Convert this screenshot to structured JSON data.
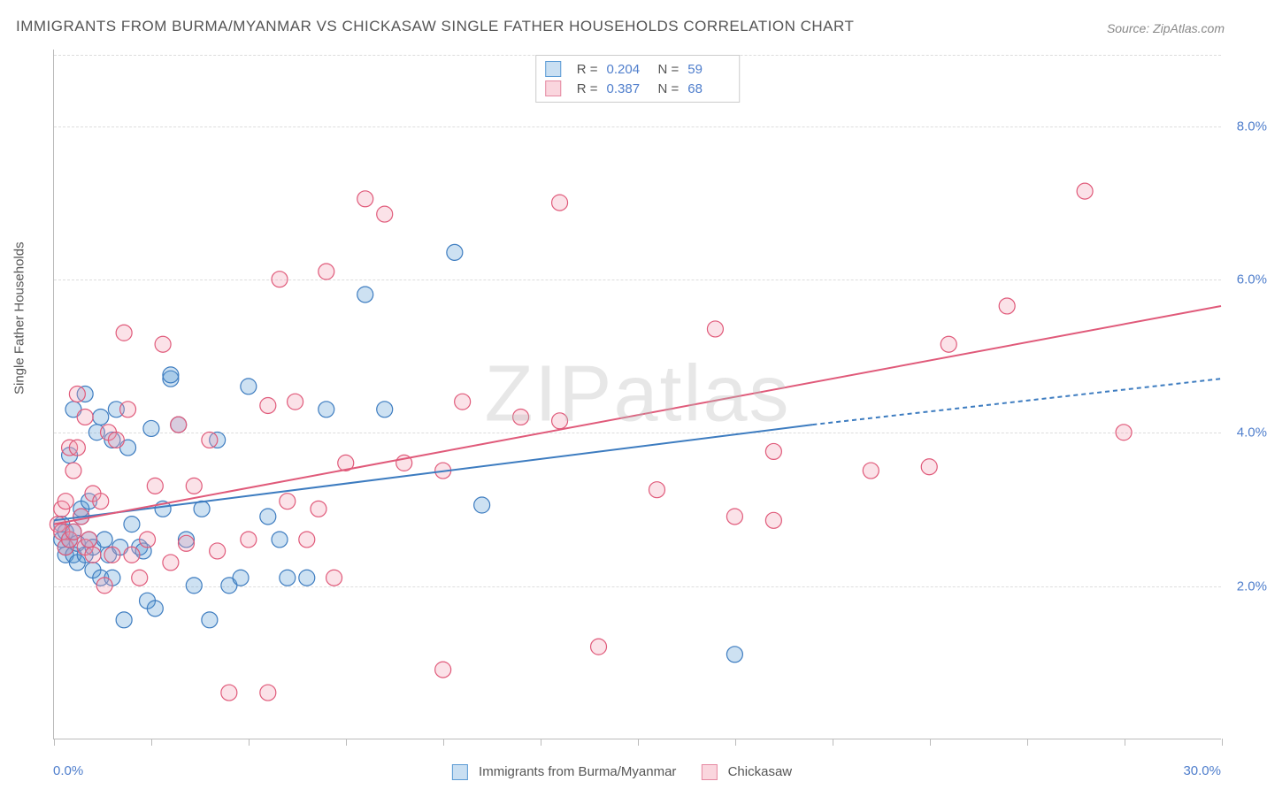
{
  "title": "IMMIGRANTS FROM BURMA/MYANMAR VS CHICKASAW SINGLE FATHER HOUSEHOLDS CORRELATION CHART",
  "source": "Source: ZipAtlas.com",
  "watermark": "ZIPatlas",
  "y_axis": {
    "label": "Single Father Households"
  },
  "chart": {
    "type": "scatter",
    "background_color": "#ffffff",
    "grid_color": "#dddddd",
    "axis_color": "#bbbbbb",
    "xlim": [
      0,
      30
    ],
    "ylim": [
      0,
      9
    ],
    "x_min_label": "0.0%",
    "x_max_label": "30.0%",
    "x_ticks": [
      0,
      2.5,
      5,
      7.5,
      10,
      12.5,
      15,
      17.5,
      20,
      22.5,
      25,
      27.5,
      30
    ],
    "y_ticks": [
      {
        "v": 2.0,
        "label": "2.0%"
      },
      {
        "v": 4.0,
        "label": "4.0%"
      },
      {
        "v": 6.0,
        "label": "6.0%"
      },
      {
        "v": 8.0,
        "label": "8.0%"
      }
    ],
    "marker_radius": 9,
    "marker_stroke_width": 1.2,
    "marker_fill_opacity": 0.3,
    "line_width": 2,
    "dash_pattern": "5,4",
    "series": [
      {
        "name": "Immigrants from Burma/Myanmar",
        "color": "#5b9bd5",
        "stroke": "#3d7cc0",
        "R": "0.204",
        "N": "59",
        "trend": {
          "x1": 0,
          "y1": 2.85,
          "x2_solid": 19.5,
          "y2_solid": 4.1,
          "x2_dash": 30,
          "y2_dash": 4.7
        },
        "points": [
          [
            0.2,
            2.8
          ],
          [
            0.2,
            2.6
          ],
          [
            0.3,
            2.5
          ],
          [
            0.3,
            2.7
          ],
          [
            0.3,
            2.4
          ],
          [
            0.4,
            3.7
          ],
          [
            0.4,
            2.6
          ],
          [
            0.5,
            2.4
          ],
          [
            0.5,
            2.7
          ],
          [
            0.5,
            4.3
          ],
          [
            0.6,
            2.55
          ],
          [
            0.6,
            2.3
          ],
          [
            0.7,
            2.9
          ],
          [
            0.7,
            3.0
          ],
          [
            0.8,
            4.5
          ],
          [
            0.8,
            2.4
          ],
          [
            0.9,
            3.1
          ],
          [
            0.9,
            2.6
          ],
          [
            1.0,
            2.5
          ],
          [
            1.0,
            2.2
          ],
          [
            1.1,
            4.0
          ],
          [
            1.2,
            2.1
          ],
          [
            1.2,
            4.2
          ],
          [
            1.3,
            2.6
          ],
          [
            1.4,
            2.4
          ],
          [
            1.5,
            3.9
          ],
          [
            1.5,
            2.1
          ],
          [
            1.6,
            4.3
          ],
          [
            1.7,
            2.5
          ],
          [
            1.8,
            1.55
          ],
          [
            1.9,
            3.8
          ],
          [
            2.0,
            2.8
          ],
          [
            2.2,
            2.5
          ],
          [
            2.3,
            2.45
          ],
          [
            2.4,
            1.8
          ],
          [
            2.5,
            4.05
          ],
          [
            2.6,
            1.7
          ],
          [
            2.8,
            3.0
          ],
          [
            3.0,
            4.7
          ],
          [
            3.0,
            4.75
          ],
          [
            3.2,
            4.1
          ],
          [
            3.4,
            2.6
          ],
          [
            3.6,
            2.0
          ],
          [
            3.8,
            3.0
          ],
          [
            4.0,
            1.55
          ],
          [
            4.2,
            3.9
          ],
          [
            4.5,
            2.0
          ],
          [
            4.8,
            2.1
          ],
          [
            5.0,
            4.6
          ],
          [
            5.5,
            2.9
          ],
          [
            5.8,
            2.6
          ],
          [
            6.0,
            2.1
          ],
          [
            6.5,
            2.1
          ],
          [
            7.0,
            4.3
          ],
          [
            8.0,
            5.8
          ],
          [
            8.5,
            4.3
          ],
          [
            10.3,
            6.35
          ],
          [
            11.0,
            3.05
          ],
          [
            17.5,
            1.1
          ]
        ]
      },
      {
        "name": "Chickasaw",
        "color": "#f2a0b2",
        "stroke": "#e05a7a",
        "R": "0.387",
        "N": "68",
        "trend": {
          "x1": 0,
          "y1": 2.8,
          "x2_solid": 30,
          "y2_solid": 5.65,
          "x2_dash": 30,
          "y2_dash": 5.65
        },
        "points": [
          [
            0.1,
            2.8
          ],
          [
            0.2,
            2.7
          ],
          [
            0.2,
            3.0
          ],
          [
            0.3,
            3.1
          ],
          [
            0.3,
            2.5
          ],
          [
            0.4,
            3.8
          ],
          [
            0.4,
            2.6
          ],
          [
            0.5,
            2.7
          ],
          [
            0.5,
            3.5
          ],
          [
            0.6,
            3.8
          ],
          [
            0.6,
            4.5
          ],
          [
            0.7,
            2.9
          ],
          [
            0.8,
            2.5
          ],
          [
            0.8,
            4.2
          ],
          [
            0.9,
            2.6
          ],
          [
            1.0,
            3.2
          ],
          [
            1.0,
            2.4
          ],
          [
            1.2,
            3.1
          ],
          [
            1.3,
            2.0
          ],
          [
            1.4,
            4.0
          ],
          [
            1.5,
            2.4
          ],
          [
            1.6,
            3.9
          ],
          [
            1.8,
            5.3
          ],
          [
            1.9,
            4.3
          ],
          [
            2.0,
            2.4
          ],
          [
            2.2,
            2.1
          ],
          [
            2.4,
            2.6
          ],
          [
            2.6,
            3.3
          ],
          [
            2.8,
            5.15
          ],
          [
            3.0,
            2.3
          ],
          [
            3.2,
            4.1
          ],
          [
            3.4,
            2.55
          ],
          [
            3.6,
            3.3
          ],
          [
            4.0,
            3.9
          ],
          [
            4.2,
            2.45
          ],
          [
            4.5,
            0.6
          ],
          [
            5.0,
            2.6
          ],
          [
            5.5,
            0.6
          ],
          [
            5.5,
            4.35
          ],
          [
            5.8,
            6.0
          ],
          [
            6.0,
            3.1
          ],
          [
            6.2,
            4.4
          ],
          [
            6.5,
            2.6
          ],
          [
            6.8,
            3.0
          ],
          [
            7.0,
            6.1
          ],
          [
            7.2,
            2.1
          ],
          [
            7.5,
            3.6
          ],
          [
            8.0,
            7.05
          ],
          [
            8.5,
            6.85
          ],
          [
            9.0,
            3.6
          ],
          [
            10.0,
            0.9
          ],
          [
            10.0,
            3.5
          ],
          [
            10.5,
            4.4
          ],
          [
            12.0,
            4.2
          ],
          [
            13.0,
            7.0
          ],
          [
            13.0,
            4.15
          ],
          [
            14.0,
            1.2
          ],
          [
            15.5,
            3.25
          ],
          [
            17.0,
            5.35
          ],
          [
            17.5,
            2.9
          ],
          [
            18.5,
            3.75
          ],
          [
            18.5,
            2.85
          ],
          [
            21.0,
            3.5
          ],
          [
            22.5,
            3.55
          ],
          [
            23.0,
            5.15
          ],
          [
            24.5,
            5.65
          ],
          [
            26.5,
            7.15
          ],
          [
            27.5,
            4.0
          ]
        ]
      }
    ]
  },
  "bottom_legend": [
    {
      "label": "Immigrants from Burma/Myanmar",
      "fill": "#c9dff2",
      "border": "#5b9bd5"
    },
    {
      "label": "Chickasaw",
      "fill": "#fad6de",
      "border": "#e589a2"
    }
  ]
}
